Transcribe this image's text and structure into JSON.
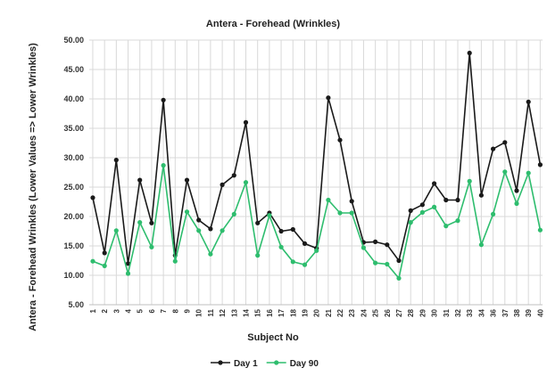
{
  "chart_data": {
    "type": "line",
    "title": "Antera - Forehead (Wrinkles)",
    "xlabel": "Subject No",
    "ylabel": "Antera - Forehead Wrinkles (Lower Values => Lower Wrinkles)",
    "ylim": [
      5,
      50
    ],
    "yticks": [
      "5.00",
      "10.00",
      "15.00",
      "20.00",
      "25.00",
      "30.00",
      "35.00",
      "40.00",
      "45.00",
      "50.00"
    ],
    "x": [
      "1",
      "2",
      "3",
      "4",
      "5",
      "6",
      "7",
      "8",
      "9",
      "10",
      "11",
      "12",
      "13",
      "14",
      "15",
      "16",
      "17",
      "18",
      "19",
      "20",
      "21",
      "22",
      "23",
      "24",
      "25",
      "26",
      "27",
      "28",
      "29",
      "30",
      "31",
      "32",
      "33",
      "34",
      "36",
      "37",
      "38",
      "39",
      "40"
    ],
    "series": [
      {
        "name": "Day 1",
        "color": "#1a1a1a",
        "values": [
          23.2,
          13.8,
          29.6,
          12.0,
          26.2,
          18.9,
          39.8,
          13.4,
          26.2,
          19.4,
          17.9,
          25.4,
          27.0,
          36.0,
          18.9,
          20.6,
          17.5,
          17.8,
          15.4,
          14.6,
          40.2,
          33.0,
          22.6,
          15.6,
          15.7,
          15.2,
          12.5,
          21.0,
          22.0,
          25.6,
          22.8,
          22.8,
          47.8,
          23.6,
          31.5,
          32.6,
          24.4,
          39.5,
          28.8
        ]
      },
      {
        "name": "Day 90",
        "color": "#2ebd6e",
        "values": [
          12.4,
          11.6,
          17.6,
          10.3,
          19.0,
          14.8,
          28.7,
          12.4,
          20.8,
          17.6,
          13.6,
          17.6,
          20.4,
          25.8,
          13.4,
          20.2,
          14.8,
          12.3,
          11.8,
          14.2,
          22.8,
          20.6,
          20.6,
          14.7,
          12.1,
          11.9,
          9.5,
          19.0,
          20.7,
          21.6,
          18.4,
          19.3,
          26.0,
          15.2,
          20.4,
          27.6,
          22.2,
          27.4,
          17.7
        ]
      }
    ],
    "grid": true,
    "legend_position": "bottom"
  }
}
